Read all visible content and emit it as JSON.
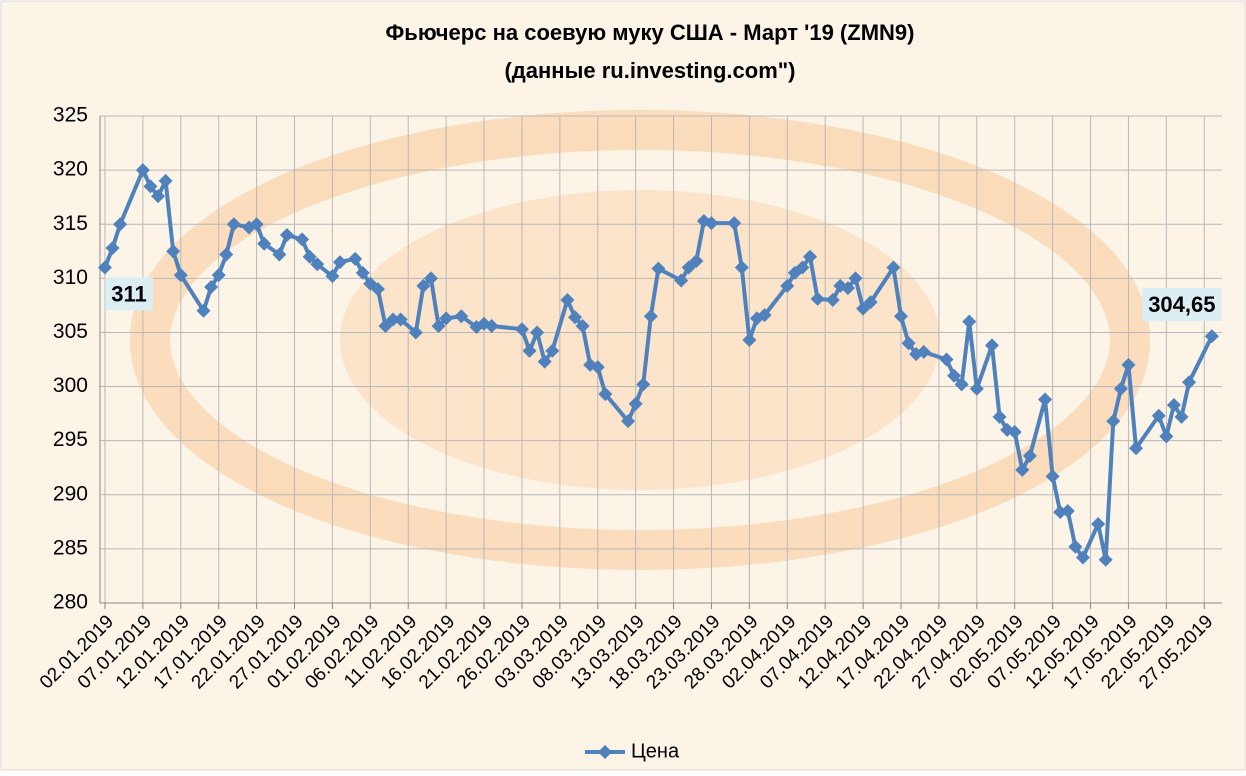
{
  "chart_data": {
    "type": "line",
    "title": "Фьючерс на соевую муку США - Март '19 (ZMN9)",
    "subtitle": "(данные ru.investing.com\")",
    "x": [
      "02.01.2019",
      "03.01.2019",
      "04.01.2019",
      "07.01.2019",
      "08.01.2019",
      "09.01.2019",
      "10.01.2019",
      "11.01.2019",
      "12.01.2019",
      "15.01.2019",
      "16.01.2019",
      "17.01.2019",
      "18.01.2019",
      "19.01.2019",
      "21.01.2019",
      "22.01.2019",
      "23.01.2019",
      "25.01.2019",
      "26.01.2019",
      "28.01.2019",
      "29.01.2019",
      "30.01.2019",
      "01.02.2019",
      "02.02.2019",
      "04.02.2019",
      "05.02.2019",
      "06.02.2019",
      "07.02.2019",
      "08.02.2019",
      "09.02.2019",
      "10.02.2019",
      "12.02.2019",
      "13.02.2019",
      "14.02.2019",
      "15.02.2019",
      "16.02.2019",
      "18.02.2019",
      "20.02.2019",
      "21.02.2019",
      "22.02.2019",
      "26.02.2019",
      "27.02.2019",
      "28.02.2019",
      "01.03.2019",
      "02.03.2019",
      "04.03.2019",
      "05.03.2019",
      "06.03.2019",
      "07.03.2019",
      "08.03.2019",
      "09.03.2019",
      "12.03.2019",
      "13.03.2019",
      "14.03.2019",
      "15.03.2019",
      "16.03.2019",
      "19.03.2019",
      "20.03.2019",
      "21.03.2019",
      "22.03.2019",
      "23.03.2019",
      "26.03.2019",
      "27.03.2019",
      "28.03.2019",
      "29.03.2019",
      "30.03.2019",
      "02.04.2019",
      "03.04.2019",
      "04.04.2019",
      "05.04.2019",
      "06.04.2019",
      "08.04.2019",
      "09.04.2019",
      "10.04.2019",
      "11.04.2019",
      "12.04.2019",
      "13.04.2019",
      "16.04.2019",
      "17.04.2019",
      "18.04.2019",
      "19.04.2019",
      "20.04.2019",
      "23.04.2019",
      "24.04.2019",
      "25.04.2019",
      "26.04.2019",
      "27.04.2019",
      "29.04.2019",
      "30.04.2019",
      "01.05.2019",
      "02.05.2019",
      "03.05.2019",
      "04.05.2019",
      "06.05.2019",
      "07.05.2019",
      "08.05.2019",
      "09.05.2019",
      "10.05.2019",
      "11.05.2019",
      "13.05.2019",
      "14.05.2019",
      "15.05.2019",
      "16.05.2019",
      "17.05.2019",
      "18.05.2019",
      "21.05.2019",
      "22.05.2019",
      "23.05.2019",
      "24.05.2019",
      "25.05.2019",
      "28.05.2019"
    ],
    "series": [
      {
        "name": "Цена",
        "color": "#4f81bd",
        "values": [
          311,
          312.8,
          315,
          320,
          318.5,
          317.6,
          319,
          312.5,
          310.3,
          307,
          309.2,
          310.3,
          312.2,
          315,
          314.7,
          315,
          313.2,
          312.2,
          314,
          313.6,
          312,
          311.3,
          310.2,
          311.5,
          311.8,
          310.5,
          309.5,
          309,
          305.6,
          306.2,
          306.2,
          305,
          309.3,
          310,
          305.6,
          306.3,
          306.5,
          305.5,
          305.8,
          305.6,
          305.3,
          303.3,
          305,
          302.3,
          303.3,
          308,
          306.4,
          305.6,
          302,
          301.8,
          299.3,
          296.8,
          298.4,
          300.2,
          306.5,
          310.9,
          309.8,
          311,
          311.6,
          315.3,
          315.1,
          315.1,
          311,
          304.3,
          306.3,
          306.6,
          309.3,
          310.5,
          311,
          312,
          308.1,
          308,
          309.3,
          309.1,
          310,
          307.2,
          307.8,
          311,
          306.5,
          304,
          303,
          303.2,
          302.5,
          301,
          300.2,
          306,
          299.8,
          303.8,
          297.2,
          296,
          295.8,
          292.3,
          293.6,
          298.8,
          291.7,
          288.4,
          288.5,
          285.2,
          284.2,
          287.3,
          284,
          296.8,
          299.8,
          302,
          294.3,
          297.3,
          295.4,
          298.3,
          297.2,
          300.4,
          304.65
        ]
      }
    ],
    "xlim": [
      "01.01.2019",
      "30.05.2019"
    ],
    "xticks": [
      "02.01.2019",
      "07.01.2019",
      "12.01.2019",
      "17.01.2019",
      "22.01.2019",
      "27.01.2019",
      "01.02.2019",
      "06.02.2019",
      "11.02.2019",
      "16.02.2019",
      "21.02.2019",
      "26.02.2019",
      "03.03.2019",
      "08.03.2019",
      "13.03.2019",
      "18.03.2019",
      "23.03.2019",
      "28.03.2019",
      "02.04.2019",
      "07.04.2019",
      "12.04.2019",
      "17.04.2019",
      "22.04.2019",
      "27.04.2019",
      "02.05.2019",
      "07.05.2019",
      "12.05.2019",
      "17.05.2019",
      "22.05.2019",
      "27.05.2019"
    ],
    "ylim": [
      280,
      325
    ],
    "yticks": [
      280,
      285,
      290,
      295,
      300,
      305,
      310,
      315,
      320,
      325
    ],
    "grid": true,
    "legend": "bottom",
    "annotations": [
      {
        "label": "311",
        "x": "02.01.2019",
        "y": 311
      },
      {
        "label": "304,65",
        "x": "28.05.2019",
        "y": 304.65
      }
    ]
  }
}
